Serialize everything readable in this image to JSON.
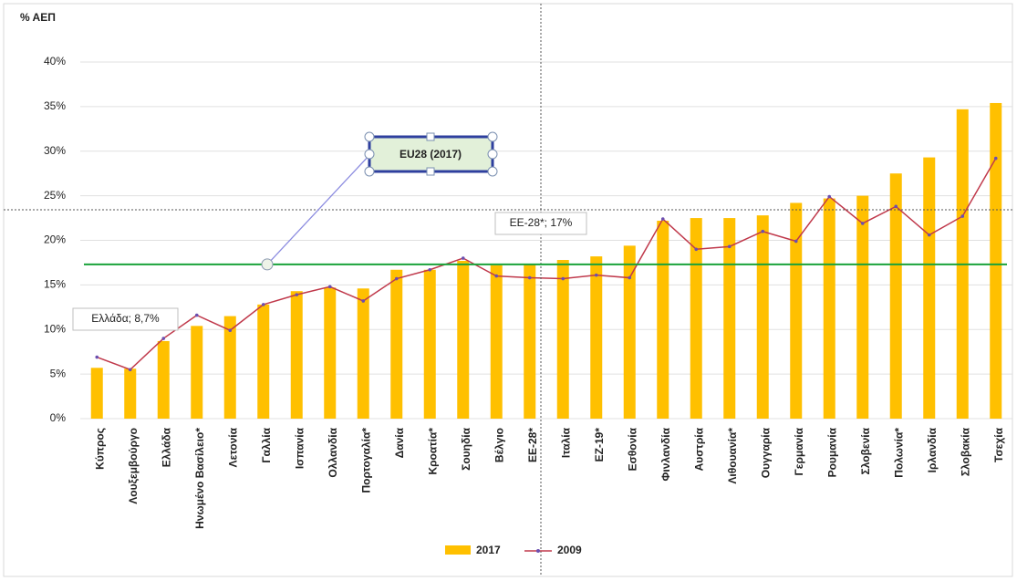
{
  "chart_data": {
    "type": "bar",
    "ylabel": "% ΑΕΠ",
    "categories": [
      "Κύπρος",
      "Λουξεμβούργο",
      "Ελλάδα",
      "Ηνωμένο Βασίλειο*",
      "Λετονία",
      "Γαλλία",
      "Ισπανία",
      "Ολλανδία",
      "Πορτογαλία*",
      "Δανία",
      "Κροατία*",
      "Σουηδία",
      "Βέλγιο",
      "ΕΕ-28*",
      "Ιταλία",
      "ΕΖ-19*",
      "Εσθονία",
      "Φινλανδία",
      "Αυστρία",
      "Λιθουανία*",
      "Ουγγαρία",
      "Γερμανία",
      "Ρουμανία",
      "Σλοβενία",
      "Πολωνία*",
      "Ιρλανδία",
      "Σλοβακία",
      "Τσεχία"
    ],
    "series": [
      {
        "name": "2017",
        "type": "bar",
        "color": "#ffc000",
        "values": [
          5.7,
          5.6,
          8.7,
          10.4,
          11.5,
          12.8,
          14.3,
          14.7,
          14.6,
          16.7,
          16.7,
          17.7,
          17.2,
          17.3,
          17.8,
          18.2,
          19.4,
          22.2,
          22.5,
          22.5,
          22.8,
          24.2,
          24.7,
          25.0,
          27.5,
          29.3,
          34.7,
          35.4
        ]
      },
      {
        "name": "2009",
        "type": "line",
        "color": "#c0394b",
        "values": [
          6.9,
          5.5,
          9.0,
          11.6,
          9.9,
          12.8,
          13.9,
          14.8,
          13.2,
          15.7,
          16.7,
          18.0,
          16.0,
          15.8,
          15.7,
          16.1,
          15.8,
          22.4,
          19.0,
          19.3,
          21.0,
          19.9,
          24.9,
          21.9,
          23.8,
          20.6,
          22.7,
          29.2
        ]
      }
    ],
    "reference_line": {
      "label": "EU28 (2017)",
      "value": 17.3,
      "color": "#1aa33a"
    },
    "annotations": [
      "Ελλάδα; 8,7%",
      "ΕΕ-28*; 17%"
    ],
    "ylim": [
      0,
      40
    ],
    "yticks": [
      {
        "value": 0,
        "label": "0%"
      },
      {
        "value": 5,
        "label": "5%"
      },
      {
        "value": 10,
        "label": "10%"
      },
      {
        "value": 15,
        "label": "15%"
      },
      {
        "value": 20,
        "label": "20%"
      },
      {
        "value": 25,
        "label": "25%"
      },
      {
        "value": 30,
        "label": "30%"
      },
      {
        "value": 35,
        "label": "35%"
      },
      {
        "value": 40,
        "label": "40%"
      }
    ],
    "grid": true,
    "legend": "bottom"
  }
}
